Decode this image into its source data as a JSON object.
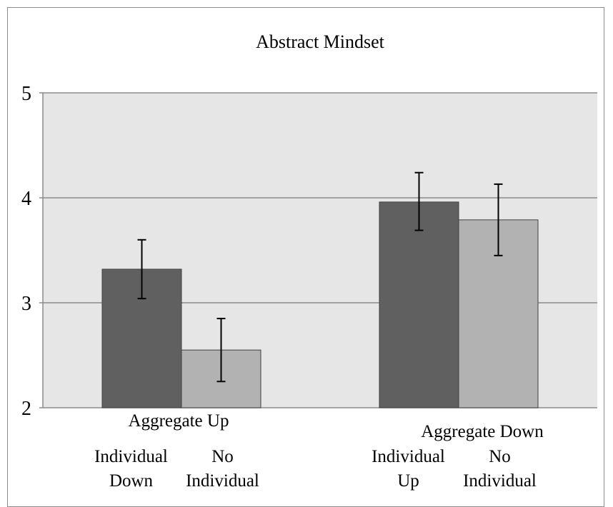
{
  "chart_data": {
    "type": "bar",
    "title": "Abstract Mindset",
    "ylim": [
      2,
      5
    ],
    "yticks": [
      "2",
      "3",
      "4",
      "5"
    ],
    "grid": true,
    "groups": [
      {
        "label": "Aggregate Up",
        "bars": [
          {
            "label": "Individual Down",
            "label_lines": [
              "Individual",
              "Down"
            ],
            "value": 3.32,
            "err_low": 3.04,
            "err_high": 3.6
          },
          {
            "label": "No Individual",
            "label_lines": [
              "No",
              "Individual"
            ],
            "value": 2.55,
            "err_low": 2.25,
            "err_high": 2.85
          }
        ]
      },
      {
        "label": "Aggregate Down",
        "bars": [
          {
            "label": "Individual Up",
            "label_lines": [
              "Individual",
              "Up"
            ],
            "value": 3.96,
            "err_low": 3.69,
            "err_high": 4.24
          },
          {
            "label": "No Individual",
            "label_lines": [
              "No",
              "Individual"
            ],
            "value": 3.79,
            "err_low": 3.45,
            "err_high": 4.13
          }
        ]
      }
    ],
    "colors": {
      "dark_bar": "#606060",
      "light_bar": "#b2b2b2",
      "plot_bg": "#e6e6e6",
      "grid": "#8c8c8c"
    }
  }
}
